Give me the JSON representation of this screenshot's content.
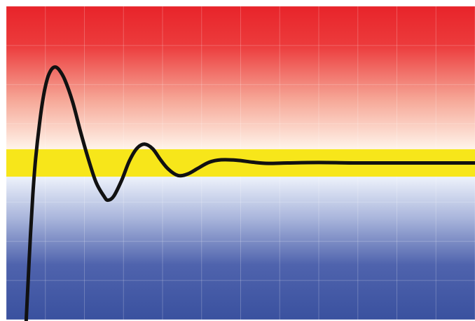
{
  "chart_data": {
    "type": "line",
    "title": "",
    "xlabel": "",
    "ylabel": "",
    "xlim": [
      0,
      12
    ],
    "ylim": [
      -4,
      4
    ],
    "grid": true,
    "legend": "none",
    "background": {
      "style": "vertical-gradient",
      "stops": [
        {
          "value": 4,
          "color": "#e8242a"
        },
        {
          "value": 3.0,
          "color": "#ec3b3c"
        },
        {
          "value": 1.6,
          "color": "#f6a898"
        },
        {
          "value": 0.35,
          "color": "#fff4ea"
        },
        {
          "value": -0.25,
          "color": "#f4f8fe"
        },
        {
          "value": -1.4,
          "color": "#aab6dc"
        },
        {
          "value": -2.6,
          "color": "#4f63ad"
        },
        {
          "value": -4,
          "color": "#3a519f"
        }
      ]
    },
    "target_band": {
      "from": -0.35,
      "to": 0.35,
      "color": "#f7e61a"
    },
    "series": [
      {
        "color": "#111111",
        "points": [
          [
            0.5,
            -4.2
          ],
          [
            0.56,
            -3.0
          ],
          [
            0.62,
            -1.8
          ],
          [
            0.68,
            -0.8
          ],
          [
            0.75,
            0.1
          ],
          [
            0.85,
            1.0
          ],
          [
            0.95,
            1.7
          ],
          [
            1.05,
            2.15
          ],
          [
            1.15,
            2.38
          ],
          [
            1.25,
            2.45
          ],
          [
            1.35,
            2.38
          ],
          [
            1.5,
            2.12
          ],
          [
            1.7,
            1.55
          ],
          [
            1.9,
            0.8
          ],
          [
            2.1,
            0.1
          ],
          [
            2.3,
            -0.5
          ],
          [
            2.5,
            -0.85
          ],
          [
            2.6,
            -0.95
          ],
          [
            2.75,
            -0.85
          ],
          [
            2.95,
            -0.45
          ],
          [
            3.15,
            0.05
          ],
          [
            3.35,
            0.38
          ],
          [
            3.55,
            0.48
          ],
          [
            3.75,
            0.36
          ],
          [
            3.95,
            0.08
          ],
          [
            4.15,
            -0.16
          ],
          [
            4.4,
            -0.32
          ],
          [
            4.65,
            -0.28
          ],
          [
            4.9,
            -0.14
          ],
          [
            5.2,
            0.02
          ],
          [
            5.5,
            0.08
          ],
          [
            5.9,
            0.07
          ],
          [
            6.3,
            0.02
          ],
          [
            6.7,
            -0.01
          ],
          [
            7.2,
            0.0
          ],
          [
            8.0,
            0.01
          ],
          [
            9.0,
            0.0
          ],
          [
            10.0,
            0.0
          ],
          [
            11.0,
            0.0
          ],
          [
            12.0,
            0.0
          ]
        ]
      }
    ]
  }
}
